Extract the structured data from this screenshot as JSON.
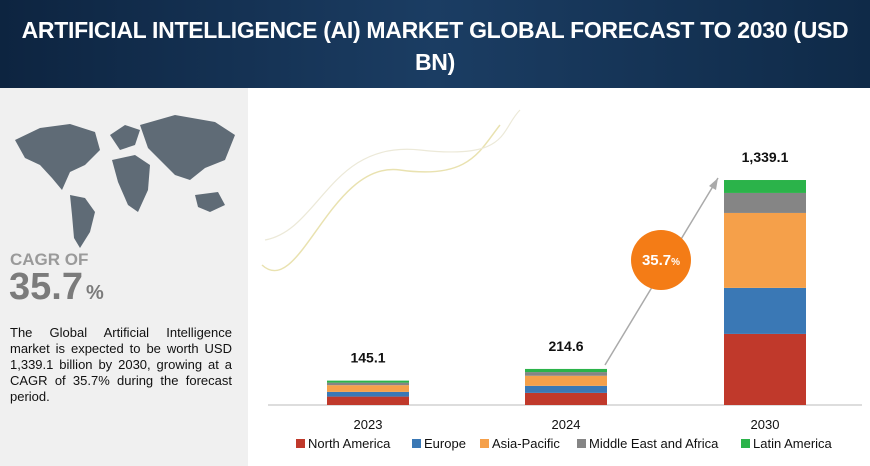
{
  "header": {
    "title": "ARTIFICIAL INTELLIGENCE (AI) MARKET GLOBAL FORECAST TO 2030 (USD BN)"
  },
  "cagr": {
    "label": "CAGR OF",
    "value": "35.7",
    "unit": "%"
  },
  "description": "The Global Artificial Intelligence market is expected to be worth USD 1,339.1 billion by 2030, growing at a CAGR of 35.7% during the forecast period.",
  "chart_data": {
    "type": "bar",
    "stacked": true,
    "categories": [
      "2023",
      "2024",
      "2030"
    ],
    "series": [
      {
        "name": "North America",
        "color": "#c0392b",
        "values": [
          50,
          72,
          423
        ]
      },
      {
        "name": "Europe",
        "color": "#3a78b5",
        "values": [
          28,
          42,
          274
        ]
      },
      {
        "name": "Asia-Pacific",
        "color": "#f5a04a",
        "values": [
          40,
          60,
          446
        ]
      },
      {
        "name": "Middle East and Africa",
        "color": "#858585",
        "values": [
          15,
          22,
          119
        ]
      },
      {
        "name": "Latin America",
        "color": "#2bb34a",
        "values": [
          12.1,
          18.6,
          77
        ]
      }
    ],
    "totals": [
      145.1,
      214.6,
      1339.1
    ],
    "total_labels": [
      "145.1",
      "214.6",
      "1,339.1"
    ],
    "growth_bubble": {
      "value": "35.7",
      "unit": "%"
    },
    "legend": "bottom"
  }
}
